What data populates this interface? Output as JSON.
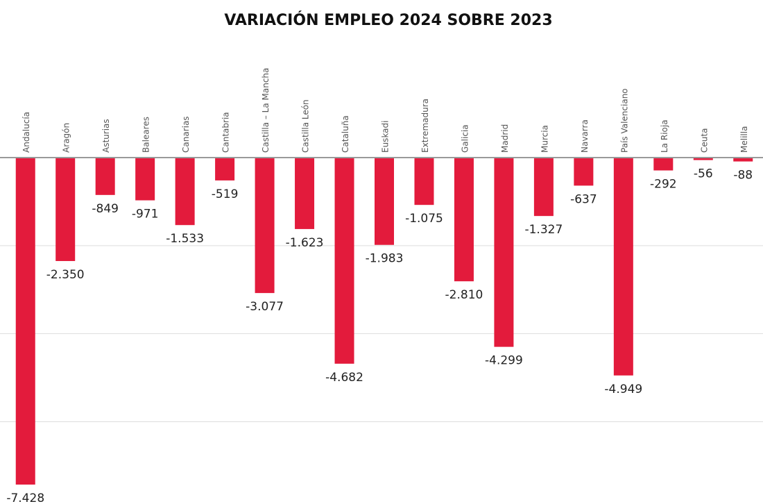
{
  "chart_data": {
    "type": "bar",
    "title": "VARIACIÓN EMPLEO 2024 SOBRE 2023",
    "categories": [
      "Andalucía",
      "Aragón",
      "Asturias",
      "Baleares",
      "Canarias",
      "Cantabria",
      "Castilla – La Mancha",
      "Castilla León",
      "Cataluña",
      "Euskadi",
      "Extremadura",
      "Galicia",
      "Madrid",
      "Murcia",
      "Navarra",
      "País Valenciano",
      "La Rioja",
      "Ceuta",
      "Melilla"
    ],
    "values": [
      -7428,
      -2350,
      -849,
      -971,
      -1533,
      -519,
      -3077,
      -1623,
      -4682,
      -1983,
      -1075,
      -2810,
      -4299,
      -1327,
      -637,
      -4949,
      -292,
      -56,
      -88
    ],
    "value_labels": [
      "-7.428",
      "-2.350",
      "-849",
      "-971",
      "-1.533",
      "-519",
      "-3.077",
      "-1.623",
      "-4.682",
      "-1.983",
      "-1.075",
      "-2.810",
      "-4.299",
      "-1.327",
      "-637",
      "-4.949",
      "-292",
      "-56",
      "-88"
    ],
    "color": "#e31b3c",
    "ylim": [
      -7500,
      0
    ],
    "yticks": [
      -6000,
      -4000,
      -2000,
      0
    ],
    "grid": true
  }
}
